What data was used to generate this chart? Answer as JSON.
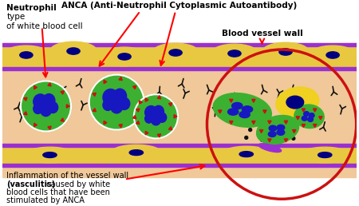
{
  "tissue_color": "#F0C899",
  "vessel_wall_yellow": "#E8C840",
  "purple_color": "#9B30D0",
  "neutrophil_green": "#3CB030",
  "nucleus_blue": "#1818C0",
  "anca_black": "#111111",
  "red_color": "#CC1111",
  "yellow_cell": "#F0D020",
  "blue_dark": "#000080",
  "white": "#FFFFFF",
  "label_neutrophil_bold": "Neutrophil",
  "label_neutrophil_rest": " type\nof white blood cell",
  "label_anca": "ANCA (Anti-Neutrophil Cytoplasmic Autoantibody)",
  "label_vessel": "Blood vessel wall",
  "label_inflammation_line1": "Inflammation of the vessel wall",
  "label_inflammation_line2": "(vasculitis)",
  "label_inflammation_line3": " caused by white",
  "label_inflammation_line4": "blood cells that have been",
  "label_inflammation_line5": "stimulated by ANCA"
}
